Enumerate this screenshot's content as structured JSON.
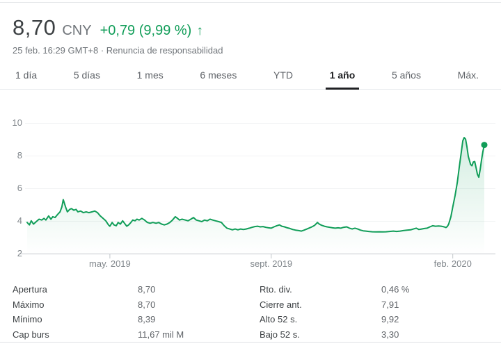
{
  "header": {
    "price": "8,70",
    "currency": "CNY",
    "change": "+0,79 (9,99 %)",
    "change_icon": "arrow-up",
    "timestamp": "25 feb. 16:29 GMT+8",
    "separator": " · ",
    "disclaimer": "Renuncia de responsabilidad"
  },
  "colors": {
    "positive_green": "#109d58",
    "price_text": "#3c4043",
    "muted_text": "#70757a",
    "axis_text": "#80868b"
  },
  "tabs": {
    "items": [
      {
        "label": "1 día",
        "active": false
      },
      {
        "label": "5 días",
        "active": false
      },
      {
        "label": "1 mes",
        "active": false
      },
      {
        "label": "6 meses",
        "active": false
      },
      {
        "label": "YTD",
        "active": false
      },
      {
        "label": "1 año",
        "active": true
      },
      {
        "label": "5 años",
        "active": false
      },
      {
        "label": "Máx.",
        "active": false
      }
    ],
    "active_label": "1 año"
  },
  "chart_data": {
    "type": "line",
    "title": "Precio de la acción, 1 año",
    "ylim": [
      2,
      10
    ],
    "y_tick_labels": [
      "10",
      "8",
      "6",
      "4",
      "2"
    ],
    "grid": true,
    "line_color": "#109d58",
    "fill": "gradient-under-line",
    "end_dot": true,
    "x_ticks": [
      {
        "label": "may. 2019",
        "f": 0.181
      },
      {
        "label": "sept. 2019",
        "f": 0.534
      },
      {
        "label": "feb. 2020",
        "f": 0.931
      }
    ],
    "points": [
      [
        0,
        3.95
      ],
      [
        0.005,
        3.8
      ],
      [
        0.009,
        4.05
      ],
      [
        0.014,
        3.85
      ],
      [
        0.02,
        4.0
      ],
      [
        0.026,
        4.15
      ],
      [
        0.032,
        4.1
      ],
      [
        0.037,
        4.2
      ],
      [
        0.041,
        4.1
      ],
      [
        0.047,
        4.35
      ],
      [
        0.052,
        4.15
      ],
      [
        0.056,
        4.3
      ],
      [
        0.061,
        4.25
      ],
      [
        0.067,
        4.45
      ],
      [
        0.072,
        4.6
      ],
      [
        0.076,
        4.9
      ],
      [
        0.079,
        5.35
      ],
      [
        0.084,
        4.9
      ],
      [
        0.088,
        4.6
      ],
      [
        0.093,
        4.75
      ],
      [
        0.097,
        4.8
      ],
      [
        0.102,
        4.7
      ],
      [
        0.107,
        4.75
      ],
      [
        0.111,
        4.6
      ],
      [
        0.117,
        4.65
      ],
      [
        0.123,
        4.55
      ],
      [
        0.129,
        4.6
      ],
      [
        0.135,
        4.55
      ],
      [
        0.142,
        4.6
      ],
      [
        0.148,
        4.65
      ],
      [
        0.154,
        4.55
      ],
      [
        0.16,
        4.35
      ],
      [
        0.166,
        4.2
      ],
      [
        0.172,
        4.05
      ],
      [
        0.178,
        3.8
      ],
      [
        0.181,
        3.72
      ],
      [
        0.186,
        3.95
      ],
      [
        0.19,
        3.8
      ],
      [
        0.195,
        3.75
      ],
      [
        0.199,
        3.95
      ],
      [
        0.204,
        3.85
      ],
      [
        0.209,
        4.05
      ],
      [
        0.213,
        3.9
      ],
      [
        0.218,
        3.72
      ],
      [
        0.222,
        3.8
      ],
      [
        0.227,
        3.95
      ],
      [
        0.231,
        4.1
      ],
      [
        0.236,
        4.05
      ],
      [
        0.24,
        4.15
      ],
      [
        0.245,
        4.1
      ],
      [
        0.251,
        4.2
      ],
      [
        0.257,
        4.1
      ],
      [
        0.263,
        3.95
      ],
      [
        0.269,
        3.9
      ],
      [
        0.275,
        3.95
      ],
      [
        0.282,
        3.9
      ],
      [
        0.288,
        3.95
      ],
      [
        0.294,
        3.85
      ],
      [
        0.3,
        3.8
      ],
      [
        0.306,
        3.85
      ],
      [
        0.312,
        3.95
      ],
      [
        0.318,
        4.1
      ],
      [
        0.324,
        4.3
      ],
      [
        0.329,
        4.2
      ],
      [
        0.333,
        4.1
      ],
      [
        0.339,
        4.15
      ],
      [
        0.346,
        4.1
      ],
      [
        0.352,
        4.05
      ],
      [
        0.358,
        4.15
      ],
      [
        0.364,
        4.25
      ],
      [
        0.37,
        4.1
      ],
      [
        0.376,
        4.05
      ],
      [
        0.382,
        4.0
      ],
      [
        0.388,
        4.1
      ],
      [
        0.394,
        4.05
      ],
      [
        0.4,
        4.15
      ],
      [
        0.406,
        4.1
      ],
      [
        0.412,
        4.05
      ],
      [
        0.419,
        4.0
      ],
      [
        0.425,
        3.95
      ],
      [
        0.431,
        3.75
      ],
      [
        0.437,
        3.6
      ],
      [
        0.443,
        3.55
      ],
      [
        0.449,
        3.5
      ],
      [
        0.455,
        3.55
      ],
      [
        0.461,
        3.5
      ],
      [
        0.467,
        3.55
      ],
      [
        0.473,
        3.52
      ],
      [
        0.479,
        3.55
      ],
      [
        0.486,
        3.6
      ],
      [
        0.492,
        3.65
      ],
      [
        0.498,
        3.7
      ],
      [
        0.504,
        3.72
      ],
      [
        0.51,
        3.68
      ],
      [
        0.516,
        3.7
      ],
      [
        0.522,
        3.65
      ],
      [
        0.528,
        3.62
      ],
      [
        0.534,
        3.6
      ],
      [
        0.54,
        3.68
      ],
      [
        0.546,
        3.75
      ],
      [
        0.552,
        3.8
      ],
      [
        0.557,
        3.72
      ],
      [
        0.563,
        3.68
      ],
      [
        0.569,
        3.62
      ],
      [
        0.575,
        3.58
      ],
      [
        0.581,
        3.52
      ],
      [
        0.587,
        3.48
      ],
      [
        0.594,
        3.45
      ],
      [
        0.6,
        3.42
      ],
      [
        0.606,
        3.48
      ],
      [
        0.612,
        3.55
      ],
      [
        0.618,
        3.62
      ],
      [
        0.624,
        3.7
      ],
      [
        0.629,
        3.78
      ],
      [
        0.635,
        3.95
      ],
      [
        0.639,
        3.85
      ],
      [
        0.644,
        3.78
      ],
      [
        0.65,
        3.72
      ],
      [
        0.656,
        3.68
      ],
      [
        0.662,
        3.65
      ],
      [
        0.668,
        3.62
      ],
      [
        0.674,
        3.6
      ],
      [
        0.68,
        3.62
      ],
      [
        0.686,
        3.6
      ],
      [
        0.692,
        3.65
      ],
      [
        0.699,
        3.68
      ],
      [
        0.705,
        3.6
      ],
      [
        0.711,
        3.55
      ],
      [
        0.717,
        3.6
      ],
      [
        0.723,
        3.55
      ],
      [
        0.729,
        3.48
      ],
      [
        0.735,
        3.44
      ],
      [
        0.741,
        3.42
      ],
      [
        0.747,
        3.4
      ],
      [
        0.755,
        3.38
      ],
      [
        0.763,
        3.37
      ],
      [
        0.77,
        3.38
      ],
      [
        0.778,
        3.37
      ],
      [
        0.785,
        3.38
      ],
      [
        0.793,
        3.4
      ],
      [
        0.801,
        3.42
      ],
      [
        0.808,
        3.4
      ],
      [
        0.816,
        3.42
      ],
      [
        0.823,
        3.45
      ],
      [
        0.831,
        3.48
      ],
      [
        0.839,
        3.5
      ],
      [
        0.845,
        3.55
      ],
      [
        0.851,
        3.6
      ],
      [
        0.857,
        3.52
      ],
      [
        0.863,
        3.55
      ],
      [
        0.869,
        3.58
      ],
      [
        0.875,
        3.6
      ],
      [
        0.881,
        3.68
      ],
      [
        0.887,
        3.75
      ],
      [
        0.893,
        3.72
      ],
      [
        0.9,
        3.73
      ],
      [
        0.906,
        3.72
      ],
      [
        0.912,
        3.68
      ],
      [
        0.916,
        3.64
      ],
      [
        0.919,
        3.7
      ],
      [
        0.922,
        3.85
      ],
      [
        0.927,
        4.3
      ],
      [
        0.931,
        4.9
      ],
      [
        0.936,
        5.6
      ],
      [
        0.941,
        6.4
      ],
      [
        0.945,
        7.3
      ],
      [
        0.95,
        8.3
      ],
      [
        0.953,
        8.95
      ],
      [
        0.956,
        9.15
      ],
      [
        0.959,
        9.05
      ],
      [
        0.962,
        8.6
      ],
      [
        0.965,
        8.0
      ],
      [
        0.97,
        7.5
      ],
      [
        0.973,
        7.42
      ],
      [
        0.976,
        7.65
      ],
      [
        0.979,
        7.68
      ],
      [
        0.982,
        7.3
      ],
      [
        0.985,
        6.9
      ],
      [
        0.988,
        6.72
      ],
      [
        0.991,
        7.2
      ],
      [
        0.994,
        7.8
      ],
      [
        0.997,
        8.3
      ],
      [
        1,
        8.7
      ]
    ]
  },
  "stats": {
    "left": [
      {
        "label": "Apertura",
        "value": "8,70"
      },
      {
        "label": "Máximo",
        "value": "8,70"
      },
      {
        "label": "Mínimo",
        "value": "8,39"
      },
      {
        "label": "Cap burs",
        "value": "11,67 mil M"
      }
    ],
    "right": [
      {
        "label": "Rto. div.",
        "value": "0,46 %"
      },
      {
        "label": "Cierre ant.",
        "value": "7,91"
      },
      {
        "label": "Alto 52 s.",
        "value": "9,92"
      },
      {
        "label": "Bajo 52 s.",
        "value": "3,30"
      }
    ]
  }
}
